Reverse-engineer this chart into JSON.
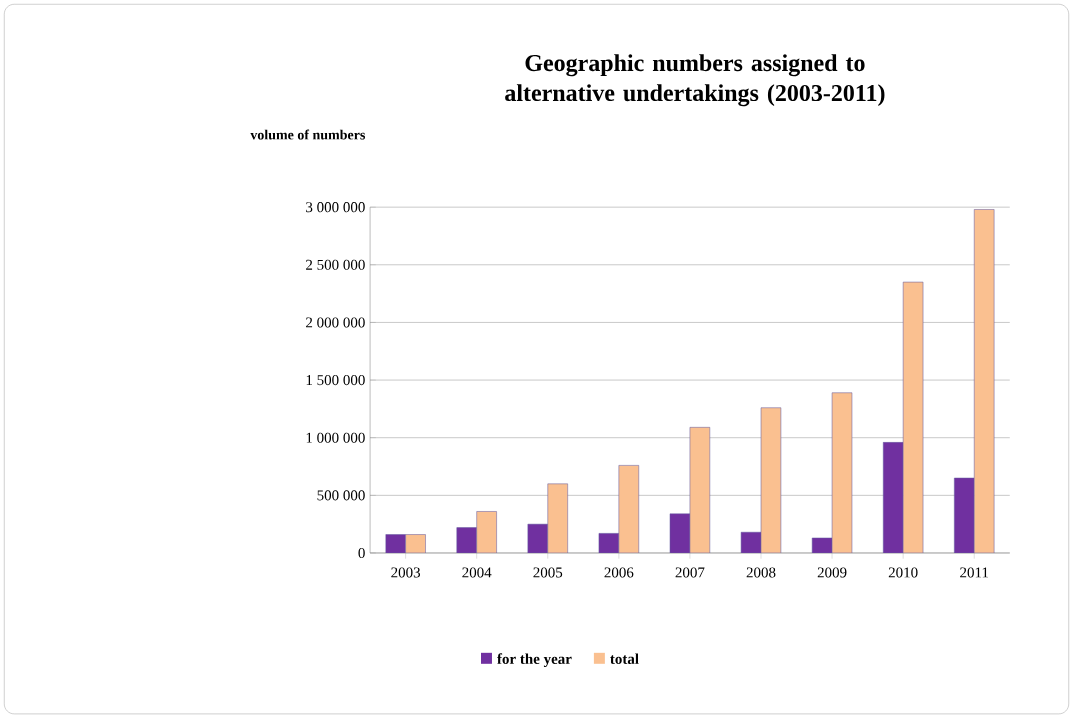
{
  "chart_data": {
    "type": "bar",
    "title": "Geographic numbers assigned to alternative undertakings (2003-2011)",
    "ylabel": "volume of numbers",
    "categories": [
      "2003",
      "2004",
      "2005",
      "2006",
      "2007",
      "2008",
      "2009",
      "2010",
      "2011"
    ],
    "series": [
      {
        "name": "for the year",
        "color": "#7030a0",
        "values": [
          160000,
          220000,
          250000,
          170000,
          340000,
          180000,
          130000,
          960000,
          650000
        ]
      },
      {
        "name": "total",
        "color": "#fac090",
        "values": [
          160000,
          360000,
          600000,
          760000,
          1090000,
          1260000,
          1390000,
          2350000,
          2980000
        ]
      }
    ],
    "ylim": [
      0,
      3000000
    ],
    "yticks": [
      {
        "value": 0,
        "label": "0"
      },
      {
        "value": 500000,
        "label": "500 000"
      },
      {
        "value": 1000000,
        "label": "1 000 000"
      },
      {
        "value": 1500000,
        "label": "1 500 000"
      },
      {
        "value": 2000000,
        "label": "2 000 000"
      },
      {
        "value": 2500000,
        "label": "2 500 000"
      },
      {
        "value": 3000000,
        "label": "3 000 000"
      }
    ],
    "grid": "y",
    "legend": "bottom"
  }
}
